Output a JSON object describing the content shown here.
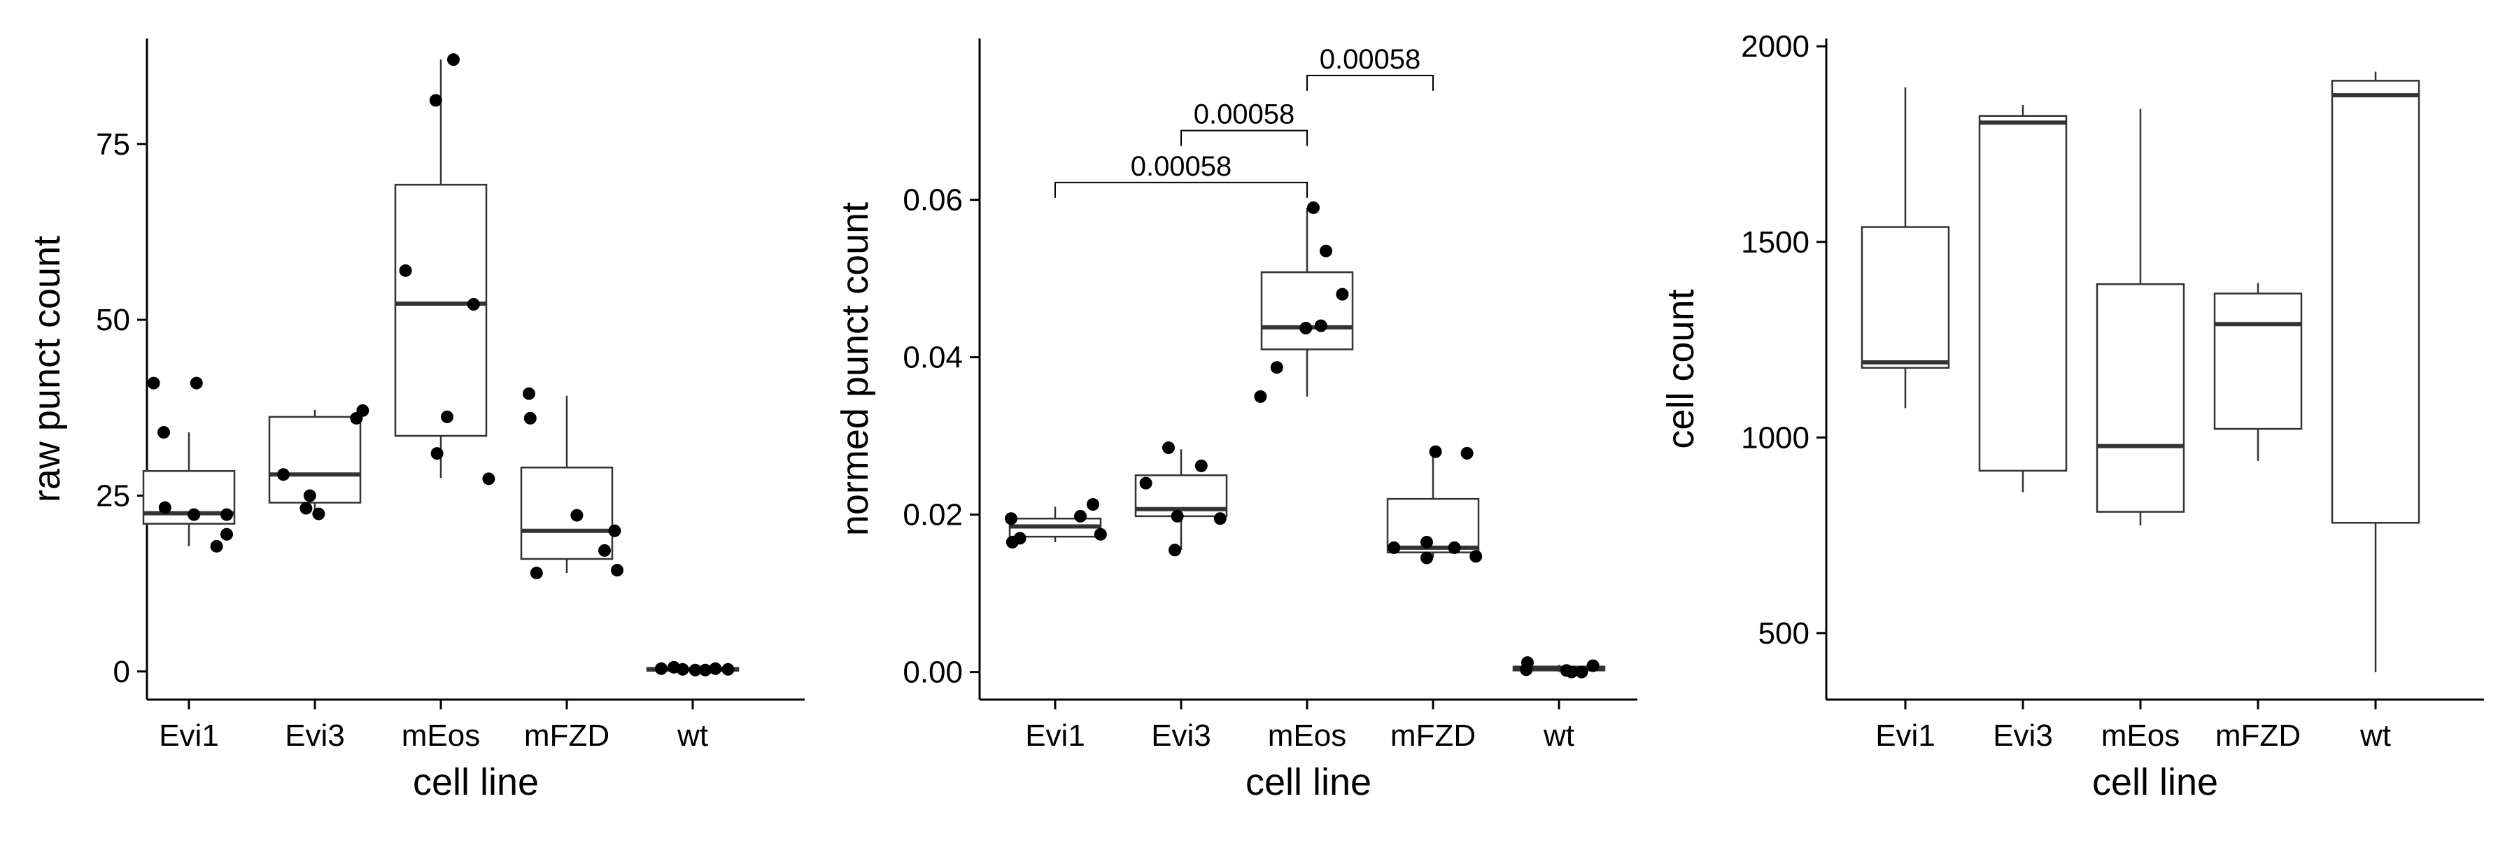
{
  "chart_data": [
    {
      "type": "box",
      "xlabel": "cell line",
      "ylabel": "raw punct count",
      "categories": [
        "Evi1",
        "Evi3",
        "mEos",
        "mFZD",
        "wt"
      ],
      "ylim": [
        -4,
        90
      ],
      "yticks": [
        0,
        25,
        50,
        75
      ],
      "ytick_labels": [
        "0",
        "25",
        "50",
        "75"
      ],
      "boxes": [
        {
          "category": "Evi1",
          "q1": 21,
          "median": 22.5,
          "q3": 28.5,
          "whisker_low": 17.8,
          "whisker_high": 34
        },
        {
          "category": "Evi3",
          "q1": 24,
          "median": 28,
          "q3": 36.2,
          "whisker_low": 22.2,
          "whisker_high": 37.2
        },
        {
          "category": "mEos",
          "q1": 33.5,
          "median": 52.3,
          "q3": 69.2,
          "whisker_low": 27.5,
          "whisker_high": 87
        },
        {
          "category": "mFZD",
          "q1": 16,
          "median": 20,
          "q3": 29,
          "whisker_low": 14,
          "whisker_high": 39.2
        },
        {
          "category": "wt",
          "q1": 0.1,
          "median": 0.3,
          "q3": 0.5,
          "whisker_low": 0,
          "whisker_high": 0.6
        }
      ],
      "points": [
        {
          "category": "Evi1",
          "values": [
            41,
            34,
            41,
            23.3,
            22.3,
            17.8,
            19.5,
            22.3
          ],
          "jitter": [
            -0.28,
            -0.2,
            0.06,
            -0.19,
            0.04,
            0.22,
            0.3,
            0.3
          ]
        },
        {
          "category": "Evi3",
          "values": [
            28,
            25,
            23.2,
            22.4,
            36,
            37.1
          ],
          "jitter": [
            -0.25,
            -0.04,
            -0.07,
            0.03,
            0.33,
            0.38
          ]
        },
        {
          "category": "mEos",
          "values": [
            87,
            81.2,
            57,
            52.2,
            36.2,
            31,
            27.4
          ],
          "jitter": [
            0.1,
            -0.04,
            -0.28,
            0.26,
            0.05,
            -0.03,
            0.38
          ]
        },
        {
          "category": "mFZD",
          "values": [
            39.5,
            36,
            22.2,
            20,
            17.2,
            14.4,
            14
          ],
          "jitter": [
            -0.3,
            -0.29,
            0.08,
            0.38,
            0.3,
            0.4,
            -0.24
          ]
        },
        {
          "category": "wt",
          "values": [
            0.4,
            0.6,
            0.3,
            0.2,
            0.2,
            0.4,
            0.3
          ],
          "jitter": [
            -0.25,
            -0.15,
            -0.08,
            0.02,
            0.1,
            0.18,
            0.28
          ]
        }
      ]
    },
    {
      "type": "box",
      "xlabel": "cell line",
      "ylabel": "normed punct count",
      "categories": [
        "Evi1",
        "Evi3",
        "mEos",
        "mFZD",
        "wt"
      ],
      "ylim": [
        -0.0035,
        0.0805
      ],
      "yticks": [
        0,
        0.02,
        0.04,
        0.06
      ],
      "ytick_labels": [
        "0.00",
        "0.02",
        "0.04",
        "0.06"
      ],
      "boxes": [
        {
          "category": "Evi1",
          "q1": 0.0172,
          "median": 0.0185,
          "q3": 0.0195,
          "whisker_low": 0.0165,
          "whisker_high": 0.021
        },
        {
          "category": "Evi3",
          "q1": 0.0198,
          "median": 0.0207,
          "q3": 0.025,
          "whisker_low": 0.0155,
          "whisker_high": 0.0283
        },
        {
          "category": "mEos",
          "q1": 0.041,
          "median": 0.0438,
          "q3": 0.0508,
          "whisker_low": 0.035,
          "whisker_high": 0.059
        },
        {
          "category": "mFZD",
          "q1": 0.0152,
          "median": 0.0158,
          "q3": 0.022,
          "whisker_low": 0.0145,
          "whisker_high": 0.028
        },
        {
          "category": "wt",
          "q1": 0.0002,
          "median": 0.0004,
          "q3": 0.0007,
          "whisker_low": 0.0,
          "whisker_high": 0.0009
        }
      ],
      "points": [
        {
          "category": "Evi1",
          "values": [
            0.0195,
            0.0165,
            0.017,
            0.0198,
            0.0213,
            0.0175
          ],
          "jitter": [
            -0.35,
            -0.34,
            -0.28,
            0.2,
            0.3,
            0.36
          ]
        },
        {
          "category": "Evi3",
          "values": [
            0.0285,
            0.024,
            0.0155,
            0.0198,
            0.0262,
            0.0195
          ],
          "jitter": [
            -0.1,
            -0.28,
            -0.05,
            -0.03,
            0.16,
            0.31
          ]
        },
        {
          "category": "mEos",
          "values": [
            0.059,
            0.0535,
            0.048,
            0.0437,
            0.044,
            0.0387,
            0.035
          ],
          "jitter": [
            0.05,
            0.15,
            0.28,
            -0.01,
            0.11,
            -0.24,
            -0.37
          ]
        },
        {
          "category": "mFZD",
          "values": [
            0.028,
            0.0278,
            0.0165,
            0.0158,
            0.0158,
            0.0147,
            0.0145
          ],
          "jitter": [
            0.02,
            0.27,
            -0.05,
            -0.31,
            0.17,
            0.34,
            -0.05
          ]
        },
        {
          "category": "wt",
          "values": [
            0.0012,
            0.0003,
            0.0,
            0.0,
            0.0008,
            0.0002
          ],
          "jitter": [
            -0.25,
            -0.26,
            0.1,
            0.18,
            0.27,
            0.06
          ]
        }
      ],
      "comparisons": [
        {
          "from": "Evi1",
          "to": "mEos",
          "y": 0.0622,
          "label": "0.00058"
        },
        {
          "from": "Evi3",
          "to": "mEos",
          "y": 0.0688,
          "label": "0.00058"
        },
        {
          "from": "mEos",
          "to": "mFZD",
          "y": 0.0758,
          "label": "0.00058"
        }
      ]
    },
    {
      "type": "box",
      "xlabel": "cell line",
      "ylabel": "cell count",
      "categories": [
        "Evi1",
        "Evi3",
        "mEos",
        "mFZD",
        "wt"
      ],
      "ylim": [
        330,
        2020
      ],
      "yticks": [
        500,
        1000,
        1500,
        2000
      ],
      "ytick_labels": [
        "500",
        "1000",
        "1500",
        "2000"
      ],
      "boxes": [
        {
          "category": "Evi1",
          "q1": 1178,
          "median": 1192,
          "q3": 1538,
          "whisker_low": 1075,
          "whisker_high": 1895
        },
        {
          "category": "Evi3",
          "q1": 915,
          "median": 1805,
          "q3": 1822,
          "whisker_low": 860,
          "whisker_high": 1850
        },
        {
          "category": "mEos",
          "q1": 810,
          "median": 978,
          "q3": 1392,
          "whisker_low": 775,
          "whisker_high": 1840
        },
        {
          "category": "mFZD",
          "q1": 1022,
          "median": 1290,
          "q3": 1368,
          "whisker_low": 940,
          "whisker_high": 1395
        },
        {
          "category": "wt",
          "q1": 782,
          "median": 1875,
          "q3": 1912,
          "whisker_low": 400,
          "whisker_high": 1935
        }
      ],
      "points": []
    }
  ]
}
